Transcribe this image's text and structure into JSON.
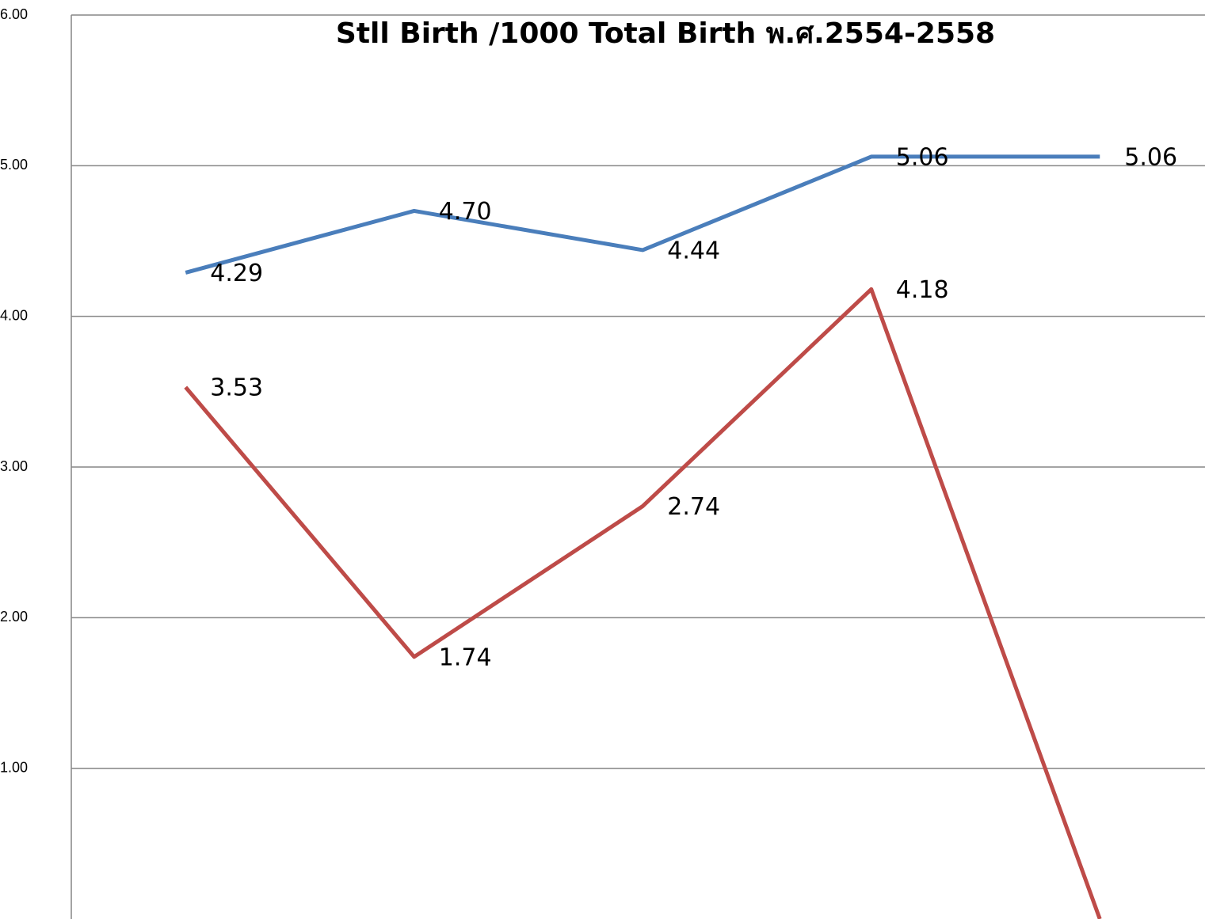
{
  "chart_data": {
    "type": "line",
    "title": "Stll Birth /1000 Total Birth พ.ศ.2554-2558",
    "categories": [
      null,
      null,
      null,
      null,
      null
    ],
    "series": [
      {
        "color": "#4a7ebb",
        "values": [
          4.29,
          4.7,
          4.44,
          5.06,
          5.06
        ],
        "value_labels": [
          "4.29",
          "4.70",
          "4.44",
          "5.06",
          "5.06"
        ]
      },
      {
        "color": "#be4b48",
        "values": [
          3.53,
          1.74,
          2.74,
          4.18,
          0
        ],
        "value_labels": [
          "3.53",
          "1.74",
          "2.74",
          "4.18",
          null
        ]
      }
    ],
    "ylim": [
      0,
      6
    ],
    "yticks": [
      {
        "value": 1,
        "label": "1.00"
      },
      {
        "value": 2,
        "label": "2.00"
      },
      {
        "value": 3,
        "label": "3.00"
      },
      {
        "value": 4,
        "label": "4.00"
      },
      {
        "value": 5,
        "label": "5.00"
      },
      {
        "value": 6,
        "label": "6.00"
      }
    ],
    "grid": true
  }
}
